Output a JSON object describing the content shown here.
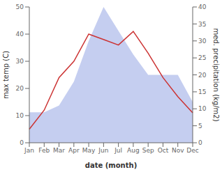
{
  "chart_data": {
    "type": "line",
    "xlabel": "date (month)",
    "ylabel": "max temp (C)",
    "y2label": "med. precipitation (kg/m2)",
    "categories": [
      "Jan",
      "Feb",
      "Mar",
      "Apr",
      "May",
      "Jun",
      "Jul",
      "Aug",
      "Sep",
      "Oct",
      "Nov",
      "Dec"
    ],
    "series": [
      {
        "type": "area",
        "axis": "y2",
        "color": "#c5cef0",
        "values": [
          9,
          9,
          11,
          18,
          30,
          40,
          33,
          26,
          20,
          20,
          20,
          12
        ]
      },
      {
        "type": "line",
        "color": "#cc3333",
        "values": [
          5,
          12,
          24,
          30,
          40,
          38,
          36,
          41,
          33,
          24,
          17,
          11
        ]
      }
    ],
    "ylim": [
      0,
      50
    ],
    "yticks": [
      0,
      10,
      20,
      30,
      40,
      50
    ],
    "y2lim": [
      0,
      40
    ],
    "y2ticks": [
      0,
      5,
      10,
      15,
      20,
      25,
      30,
      35,
      40
    ],
    "grid": false
  }
}
